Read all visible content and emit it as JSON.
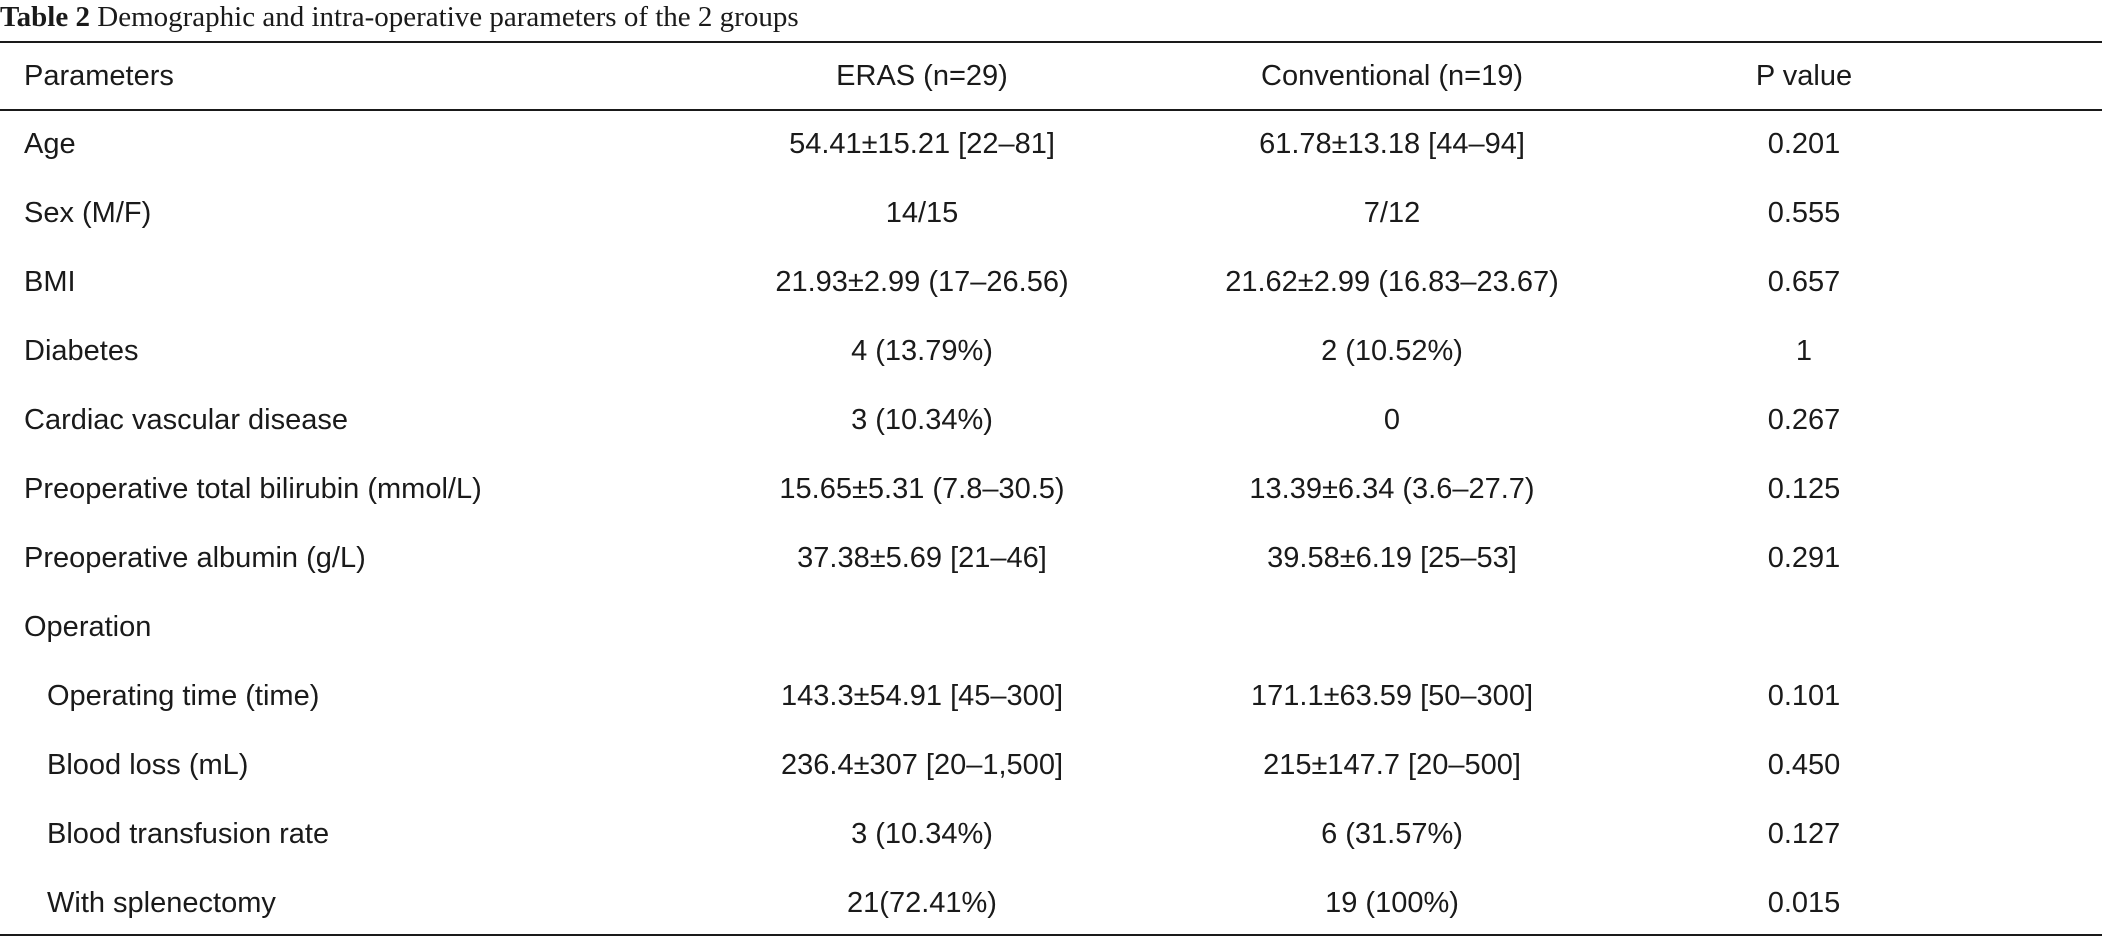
{
  "caption": {
    "label": "Table 2",
    "text": "Demographic and intra-operative parameters of the 2 groups"
  },
  "headers": [
    "Parameters",
    "ERAS (n=29)",
    "Conventional (n=19)",
    "P value"
  ],
  "rows": [
    {
      "param": "Age",
      "eras": "54.41±15.21 [22–81]",
      "conv": "61.78±13.18 [44–94]",
      "p": "0.201"
    },
    {
      "param": "Sex (M/F)",
      "eras": "14/15",
      "conv": "7/12",
      "p": "0.555"
    },
    {
      "param": "BMI",
      "eras": "21.93±2.99 (17–26.56)",
      "conv": "21.62±2.99 (16.83–23.67)",
      "p": "0.657"
    },
    {
      "param": "Diabetes",
      "eras": "4 (13.79%)",
      "conv": "2 (10.52%)",
      "p": "1"
    },
    {
      "param": "Cardiac vascular disease",
      "eras": "3 (10.34%)",
      "conv": "0",
      "p": "0.267"
    },
    {
      "param": "Preoperative total bilirubin (mmol/L)",
      "eras": "15.65±5.31 (7.8–30.5)",
      "conv": "13.39±6.34 (3.6–27.7)",
      "p": "0.125"
    },
    {
      "param": "Preoperative albumin (g/L)",
      "eras": "37.38±5.69 [21–46]",
      "conv": "39.58±6.19 [25–53]",
      "p": "0.291"
    },
    {
      "param": "Operation",
      "eras": "",
      "conv": "",
      "p": ""
    },
    {
      "param": "Operating time (time)",
      "eras": "143.3±54.91 [45–300]",
      "conv": "171.1±63.59 [50–300]",
      "p": "0.101"
    },
    {
      "param": "Blood loss (mL)",
      "eras": "236.4±307 [20–1,500]",
      "conv": "215±147.7 [20–500]",
      "p": "0.450"
    },
    {
      "param": "Blood transfusion rate",
      "eras": "3 (10.34%)",
      "conv": "6 (31.57%)",
      "p": "0.127"
    },
    {
      "param": "With splenectomy",
      "eras": "21(72.41%)",
      "conv": "19 (100%)",
      "p": "0.015"
    }
  ]
}
